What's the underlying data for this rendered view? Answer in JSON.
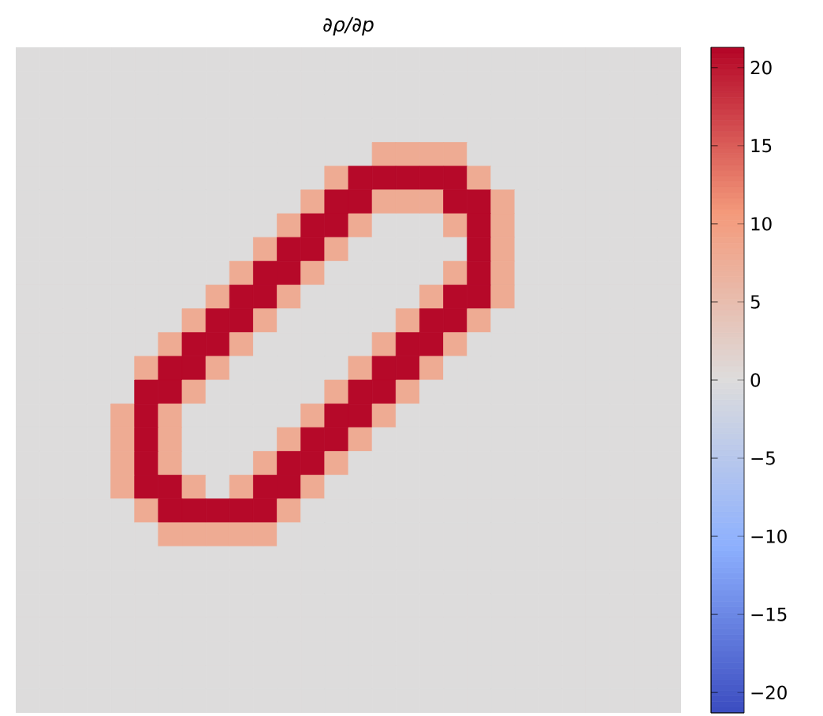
{
  "chart_data": {
    "type": "heatmap",
    "title": "∂ρ/∂p",
    "categories": [
      null,
      null,
      null,
      null,
      null,
      null,
      null,
      null,
      null,
      null,
      null,
      null,
      null,
      null,
      null,
      null,
      null,
      null,
      null,
      null,
      null,
      null,
      null,
      null,
      null,
      null,
      null,
      null
    ],
    "y_categories": [
      null,
      null,
      null,
      null,
      null,
      null,
      null,
      null,
      null,
      null,
      null,
      null,
      null,
      null,
      null,
      null,
      null,
      null,
      null,
      null,
      null,
      null,
      null,
      null,
      null,
      null,
      null,
      null
    ],
    "cells": [
      [
        0,
        0,
        0,
        0,
        0,
        0,
        0,
        0,
        0,
        0,
        0,
        0,
        0,
        0,
        0,
        0,
        0,
        0,
        0,
        0,
        0,
        0,
        0,
        0,
        0,
        0,
        0,
        0
      ],
      [
        0,
        0,
        0,
        0,
        0,
        0,
        0,
        0,
        0,
        0,
        0,
        0,
        0,
        0,
        0,
        0,
        0,
        0,
        0,
        0,
        0,
        0,
        0,
        0,
        0,
        0,
        0,
        0
      ],
      [
        0,
        0,
        0,
        0,
        0,
        0,
        0,
        0,
        0,
        0,
        0,
        0,
        0,
        0,
        0,
        0,
        0,
        0,
        0,
        0,
        0,
        0,
        0,
        0,
        0,
        0,
        0,
        0
      ],
      [
        0,
        0,
        0,
        0,
        0,
        0,
        0,
        0,
        0,
        0,
        0,
        0,
        0,
        0,
        0,
        0,
        0,
        0,
        0,
        0,
        0,
        0,
        0,
        0,
        0,
        0,
        0,
        0
      ],
      [
        0,
        0,
        0,
        0,
        0,
        0,
        0,
        0,
        0,
        0,
        0,
        0,
        0,
        0,
        0,
        8,
        8,
        8,
        8,
        0,
        0,
        0,
        0,
        0,
        0,
        0,
        0,
        0
      ],
      [
        0,
        0,
        0,
        0,
        0,
        0,
        0,
        0,
        0,
        0,
        0,
        0,
        0,
        8,
        21,
        21,
        21,
        21,
        21,
        8,
        0,
        0,
        0,
        0,
        0,
        0,
        0,
        0
      ],
      [
        0,
        0,
        0,
        0,
        0,
        0,
        0,
        0,
        0,
        0,
        0,
        0,
        8,
        21,
        21,
        8,
        8,
        8,
        21,
        21,
        8,
        0,
        0,
        0,
        0,
        0,
        0,
        0
      ],
      [
        0,
        0,
        0,
        0,
        0,
        0,
        0,
        0,
        0,
        0,
        0,
        8,
        21,
        21,
        8,
        0,
        0,
        0,
        8,
        21,
        8,
        0,
        0,
        0,
        0,
        0,
        0,
        0
      ],
      [
        0,
        0,
        0,
        0,
        0,
        0,
        0,
        0,
        0,
        0,
        8,
        21,
        21,
        8,
        0,
        0,
        0,
        0,
        0,
        21,
        8,
        0,
        0,
        0,
        0,
        0,
        0,
        0
      ],
      [
        0,
        0,
        0,
        0,
        0,
        0,
        0,
        0,
        0,
        8,
        21,
        21,
        8,
        0,
        0,
        0,
        0,
        0,
        8,
        21,
        8,
        0,
        0,
        0,
        0,
        0,
        0,
        0
      ],
      [
        0,
        0,
        0,
        0,
        0,
        0,
        0,
        0,
        8,
        21,
        21,
        8,
        0,
        0,
        0,
        0,
        0,
        8,
        21,
        21,
        8,
        0,
        0,
        0,
        0,
        0,
        0,
        0
      ],
      [
        0,
        0,
        0,
        0,
        0,
        0,
        0,
        8,
        21,
        21,
        8,
        0,
        0,
        0,
        0,
        0,
        8,
        21,
        21,
        8,
        0,
        0,
        0,
        0,
        0,
        0,
        0,
        0
      ],
      [
        0,
        0,
        0,
        0,
        0,
        0,
        8,
        21,
        21,
        8,
        0,
        0,
        0,
        0,
        0,
        8,
        21,
        21,
        8,
        0,
        0,
        0,
        0,
        0,
        0,
        0,
        0,
        0
      ],
      [
        0,
        0,
        0,
        0,
        0,
        8,
        21,
        21,
        8,
        0,
        0,
        0,
        0,
        0,
        8,
        21,
        21,
        8,
        0,
        0,
        0,
        0,
        0,
        0,
        0,
        0,
        0,
        0
      ],
      [
        0,
        0,
        0,
        0,
        0,
        21,
        21,
        8,
        0,
        0,
        0,
        0,
        0,
        8,
        21,
        21,
        8,
        0,
        0,
        0,
        0,
        0,
        0,
        0,
        0,
        0,
        0,
        0
      ],
      [
        0,
        0,
        0,
        0,
        8,
        21,
        8,
        0,
        0,
        0,
        0,
        0,
        8,
        21,
        21,
        8,
        0,
        0,
        0,
        0,
        0,
        0,
        0,
        0,
        0,
        0,
        0,
        0
      ],
      [
        0,
        0,
        0,
        0,
        8,
        21,
        8,
        0,
        0,
        0,
        0,
        8,
        21,
        21,
        8,
        0,
        0,
        0,
        0,
        0,
        0,
        0,
        0,
        0,
        0,
        0,
        0,
        0
      ],
      [
        0,
        0,
        0,
        0,
        8,
        21,
        8,
        0,
        0,
        0,
        8,
        21,
        21,
        8,
        0,
        0,
        0,
        0,
        0,
        0,
        0,
        0,
        0,
        0,
        0,
        0,
        0,
        0
      ],
      [
        0,
        0,
        0,
        0,
        8,
        21,
        21,
        8,
        0,
        8,
        21,
        21,
        8,
        0,
        0,
        0,
        0,
        0,
        0,
        0,
        0,
        0,
        0,
        0,
        0,
        0,
        0,
        0
      ],
      [
        0,
        0,
        0,
        0,
        0,
        8,
        21,
        21,
        21,
        21,
        21,
        8,
        0,
        0,
        0,
        0,
        0,
        0,
        0,
        0,
        0,
        0,
        0,
        0,
        0,
        0,
        0,
        0
      ],
      [
        0,
        0,
        0,
        0,
        0,
        0,
        8,
        8,
        8,
        8,
        8,
        0,
        0,
        0,
        0,
        0,
        0,
        0,
        0,
        0,
        0,
        0,
        0,
        0,
        0,
        0,
        0,
        0
      ],
      [
        0,
        0,
        0,
        0,
        0,
        0,
        0,
        0,
        0,
        0,
        0,
        0,
        0,
        0,
        0,
        0,
        0,
        0,
        0,
        0,
        0,
        0,
        0,
        0,
        0,
        0,
        0,
        0
      ],
      [
        0,
        0,
        0,
        0,
        0,
        0,
        0,
        0,
        0,
        0,
        0,
        0,
        0,
        0,
        0,
        0,
        0,
        0,
        0,
        0,
        0,
        0,
        0,
        0,
        0,
        0,
        0,
        0
      ],
      [
        0,
        0,
        0,
        0,
        0,
        0,
        0,
        0,
        0,
        0,
        0,
        0,
        0,
        0,
        0,
        0,
        0,
        0,
        0,
        0,
        0,
        0,
        0,
        0,
        0,
        0,
        0,
        0
      ],
      [
        0,
        0,
        0,
        0,
        0,
        0,
        0,
        0,
        0,
        0,
        0,
        0,
        0,
        0,
        0,
        0,
        0,
        0,
        0,
        0,
        0,
        0,
        0,
        0,
        0,
        0,
        0,
        0
      ],
      [
        0,
        0,
        0,
        0,
        0,
        0,
        0,
        0,
        0,
        0,
        0,
        0,
        0,
        0,
        0,
        0,
        0,
        0,
        0,
        0,
        0,
        0,
        0,
        0,
        0,
        0,
        0,
        0
      ],
      [
        0,
        0,
        0,
        0,
        0,
        0,
        0,
        0,
        0,
        0,
        0,
        0,
        0,
        0,
        0,
        0,
        0,
        0,
        0,
        0,
        0,
        0,
        0,
        0,
        0,
        0,
        0,
        0
      ],
      [
        0,
        0,
        0,
        0,
        0,
        0,
        0,
        0,
        0,
        0,
        0,
        0,
        0,
        0,
        0,
        0,
        0,
        0,
        0,
        0,
        0,
        0,
        0,
        0,
        0,
        0,
        0,
        0
      ]
    ],
    "clim": [
      -21.3,
      21.3
    ],
    "cticks": [
      {
        "value": -20,
        "label": "−20"
      },
      {
        "value": -15,
        "label": "−15"
      },
      {
        "value": -10,
        "label": "−10"
      },
      {
        "value": -5,
        "label": "−5"
      },
      0,
      5,
      10,
      15,
      20
    ]
  }
}
